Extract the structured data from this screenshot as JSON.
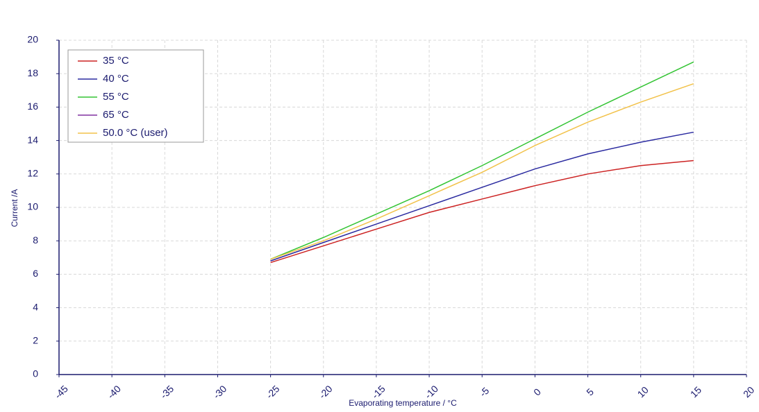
{
  "chart_data": {
    "type": "line",
    "x_label": "Evaporating temperature / °C",
    "y_label": "Current /A",
    "x": [
      -25,
      -20,
      -15,
      -10,
      -5,
      0,
      5,
      10,
      15
    ],
    "series": [
      {
        "name": "35 °C",
        "color": "#cc2222",
        "values": [
          6.7,
          7.7,
          8.7,
          9.7,
          10.5,
          11.3,
          12.0,
          12.5,
          12.8
        ]
      },
      {
        "name": "40 °C",
        "color": "#2a2aa0",
        "values": [
          6.8,
          7.9,
          9.0,
          10.1,
          11.2,
          12.3,
          13.2,
          13.9,
          14.5
        ]
      },
      {
        "name": "55 °C",
        "color": "#33c433",
        "values": [
          6.9,
          8.2,
          9.6,
          11.0,
          12.5,
          14.1,
          15.7,
          17.2,
          18.7
        ]
      },
      {
        "name": "65 °C",
        "color": "#8030a0",
        "values": [
          null,
          null,
          null,
          null,
          null,
          null,
          null,
          null,
          null
        ]
      },
      {
        "name": "50.0 °C (user)",
        "color": "#f2c24a",
        "values": [
          6.9,
          8.0,
          9.3,
          10.7,
          12.1,
          13.7,
          15.1,
          16.3,
          17.4
        ]
      }
    ],
    "xlim": [
      -45,
      20
    ],
    "xticks": [
      -45,
      -40,
      -35,
      -30,
      -25,
      -20,
      -15,
      -10,
      -5,
      0,
      5,
      10,
      15,
      20
    ],
    "ylim": [
      0,
      20
    ],
    "yticks": [
      0,
      2,
      4,
      6,
      8,
      10,
      12,
      14,
      16,
      18,
      20
    ],
    "grid": true,
    "legend": "upper-left"
  }
}
